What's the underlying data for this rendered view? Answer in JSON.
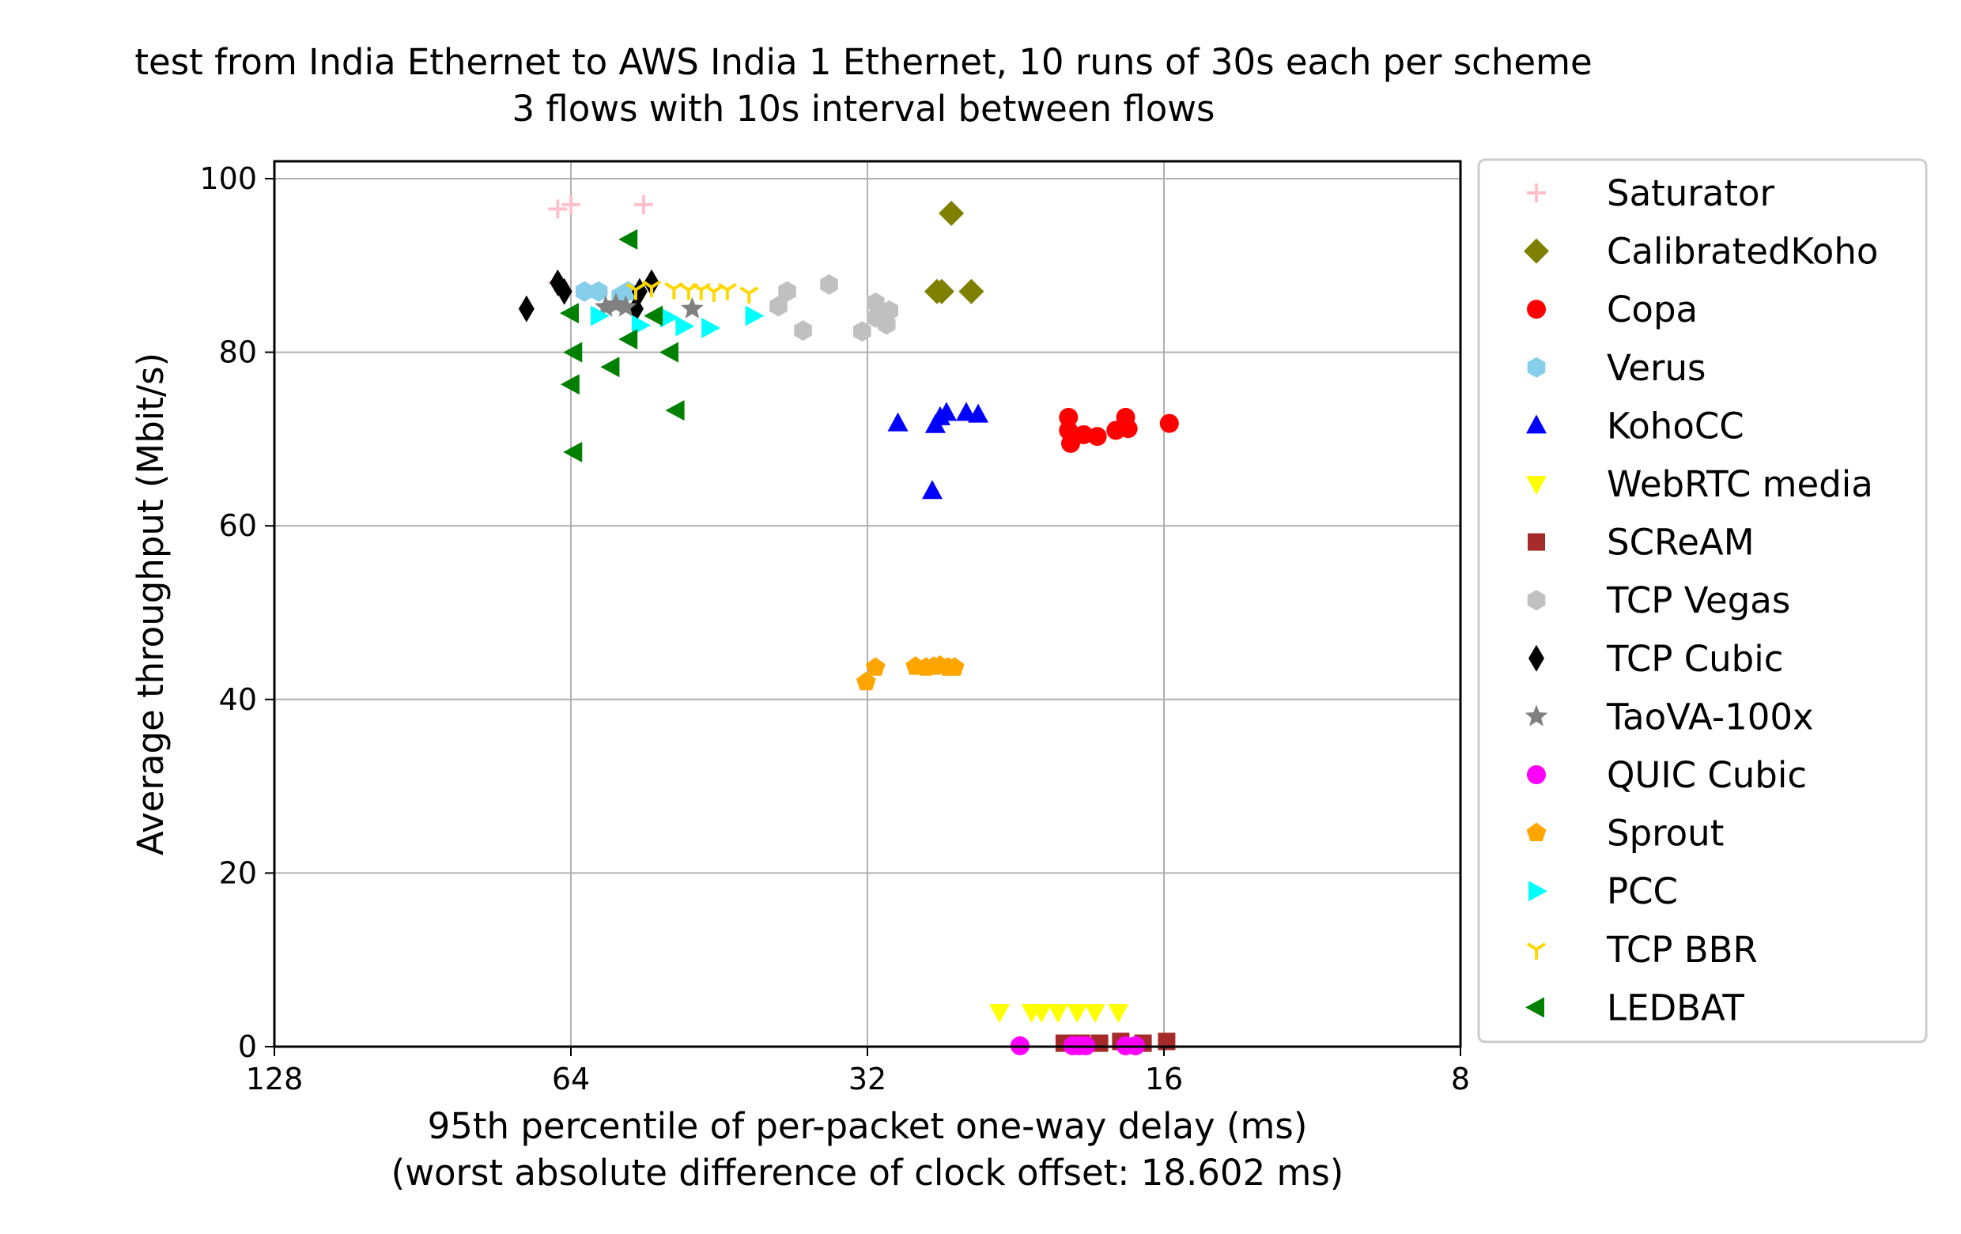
{
  "chart_data": {
    "type": "scatter",
    "title": "test from India Ethernet to AWS India 1 Ethernet, 10 runs of 30s each per scheme",
    "subtitle": "3 flows with 10s interval between flows",
    "xlabel": "95th percentile of per-packet one-way delay (ms)",
    "xlabel_note": "(worst absolute difference of clock offset: 18.602 ms)",
    "ylabel": "Average throughput (Mbit/s)",
    "x_scale": "log2",
    "x_reversed": true,
    "xlim": [
      128,
      8
    ],
    "ylim": [
      0,
      102
    ],
    "x_ticks": [
      128,
      64,
      32,
      16,
      8
    ],
    "x_tick_labels": [
      "128",
      "64",
      "32",
      "16",
      "8"
    ],
    "y_ticks": [
      0,
      20,
      40,
      60,
      80,
      100
    ],
    "y_tick_labels": [
      "0",
      "20",
      "40",
      "60",
      "80",
      "100"
    ],
    "grid": true,
    "legend_position": "outside-right",
    "series": [
      {
        "name": "Saturator",
        "marker": "plus",
        "color": "#ffc0cb",
        "points": [
          [
            66,
            96.5
          ],
          [
            64,
            97
          ],
          [
            54,
            97
          ],
          [
            66,
            88
          ],
          [
            60,
            87
          ]
        ]
      },
      {
        "name": "CalibratedKoho",
        "marker": "diamond",
        "color": "#808000",
        "points": [
          [
            26.3,
            96
          ],
          [
            27.2,
            87
          ],
          [
            26.9,
            87
          ],
          [
            25.1,
            87
          ]
        ]
      },
      {
        "name": "Copa",
        "marker": "circle",
        "color": "#ff0000",
        "points": [
          [
            20.0,
            72.5
          ],
          [
            20.0,
            71
          ],
          [
            19.9,
            69.5
          ],
          [
            19.3,
            70.5
          ],
          [
            18.7,
            70.3
          ],
          [
            17.9,
            71
          ],
          [
            17.5,
            72.5
          ],
          [
            17.4,
            71.2
          ],
          [
            15.8,
            71.8
          ]
        ]
      },
      {
        "name": "Verus",
        "marker": "hexagon",
        "color": "#87ceeb",
        "points": [
          [
            62,
            87
          ],
          [
            60,
            87
          ],
          [
            56,
            87
          ],
          [
            57,
            86.5
          ]
        ]
      },
      {
        "name": "KohoCC",
        "marker": "triangle-up",
        "color": "#0000ff",
        "points": [
          [
            29.8,
            71.8
          ],
          [
            27.5,
            64
          ],
          [
            27.3,
            71.6
          ],
          [
            27.0,
            72.5
          ],
          [
            26.6,
            73
          ],
          [
            25.4,
            73
          ],
          [
            24.7,
            72.8
          ]
        ]
      },
      {
        "name": "WebRTC media",
        "marker": "triangle-down",
        "color": "#ffff00",
        "points": [
          [
            23.5,
            4
          ],
          [
            21.8,
            4
          ],
          [
            21.3,
            4
          ],
          [
            20.5,
            4
          ],
          [
            19.6,
            4
          ],
          [
            18.8,
            4
          ],
          [
            17.8,
            4
          ]
        ]
      },
      {
        "name": "SCReAM",
        "marker": "square",
        "color": "#a52a2a",
        "points": [
          [
            20.2,
            0.4
          ],
          [
            19.4,
            0.4
          ],
          [
            18.6,
            0.4
          ],
          [
            17.7,
            0.6
          ],
          [
            16.8,
            0.4
          ],
          [
            15.9,
            0.6
          ]
        ]
      },
      {
        "name": "TCP Vegas",
        "marker": "hexagon",
        "color": "#c0c0c0",
        "points": [
          [
            31.4,
            85.7
          ],
          [
            31.4,
            84
          ],
          [
            30.6,
            83.2
          ],
          [
            30.4,
            84.8
          ],
          [
            35.0,
            87.8
          ],
          [
            38.6,
            87
          ],
          [
            39.4,
            85.3
          ],
          [
            37.2,
            82.5
          ],
          [
            32.4,
            82.4
          ]
        ]
      },
      {
        "name": "TCP Cubic",
        "marker": "diamond-thin",
        "color": "#000000",
        "points": [
          [
            71,
            85
          ],
          [
            66,
            88
          ],
          [
            65,
            87
          ],
          [
            55,
            85
          ],
          [
            54.5,
            87
          ],
          [
            53,
            88
          ]
        ]
      },
      {
        "name": "TaoVA-100x",
        "marker": "star",
        "color": "#808080",
        "points": [
          [
            59,
            85.2
          ],
          [
            57.6,
            85.5
          ],
          [
            56.3,
            85.2
          ],
          [
            48.2,
            85
          ]
        ]
      },
      {
        "name": "QUIC Cubic",
        "marker": "circle",
        "color": "#ff00ff",
        "points": [
          [
            22.4,
            0.1
          ],
          [
            19.8,
            0.1
          ],
          [
            19.5,
            0.1
          ],
          [
            19.2,
            0.1
          ],
          [
            17.5,
            0.1
          ],
          [
            17.1,
            0.1
          ]
        ]
      },
      {
        "name": "Sprout",
        "marker": "pentagon",
        "color": "#ffa500",
        "points": [
          [
            32.1,
            42
          ],
          [
            31.4,
            43.7
          ],
          [
            28.6,
            43.8
          ],
          [
            27.9,
            43.7
          ],
          [
            27.4,
            43.8
          ],
          [
            27.0,
            43.9
          ],
          [
            26.5,
            43.7
          ],
          [
            26.1,
            43.7
          ]
        ]
      },
      {
        "name": "PCC",
        "marker": "triangle-right",
        "color": "#00ffff",
        "points": [
          [
            60,
            84.2
          ],
          [
            54.5,
            83.1
          ],
          [
            51,
            84
          ],
          [
            49.2,
            83
          ],
          [
            46.3,
            82.8
          ],
          [
            41.8,
            84.2
          ]
        ]
      },
      {
        "name": "TCP BBR",
        "marker": "tri-down",
        "color": "#ffd700",
        "points": [
          [
            55,
            87.2
          ],
          [
            53,
            87.5
          ],
          [
            50.3,
            87.3
          ],
          [
            48.6,
            87.2
          ],
          [
            47.2,
            87.2
          ],
          [
            45.8,
            87
          ],
          [
            44.4,
            87.2
          ],
          [
            42.2,
            86.8
          ]
        ]
      },
      {
        "name": "LEDBAT",
        "marker": "triangle-left",
        "color": "#008000",
        "points": [
          [
            64,
            84.5
          ],
          [
            63.5,
            80
          ],
          [
            63.9,
            76.3
          ],
          [
            63.5,
            68.5
          ],
          [
            55.8,
            93
          ],
          [
            55.8,
            81.5
          ],
          [
            58.2,
            78.3
          ],
          [
            52.6,
            84.2
          ],
          [
            50.7,
            80
          ],
          [
            50.0,
            73.3
          ]
        ]
      }
    ]
  }
}
